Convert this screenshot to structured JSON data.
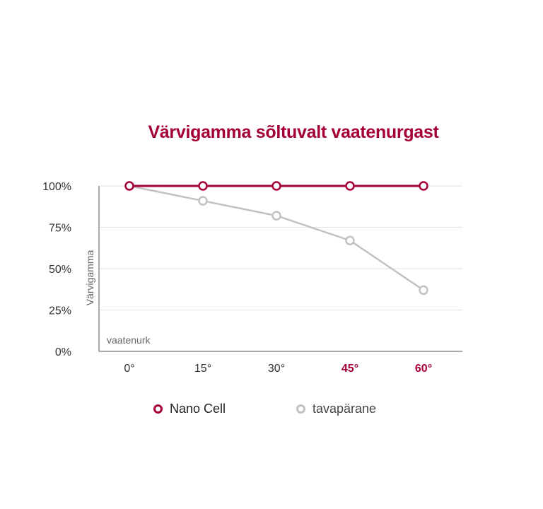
{
  "chart_data": {
    "type": "line",
    "title": "Värvigamma sõltuvalt vaatenurgast",
    "ylabel": "Värvigamma",
    "xlabel": "vaatenurk",
    "categories": [
      "0°",
      "15°",
      "30°",
      "45°",
      "60°"
    ],
    "highlighted_categories": [
      "45°",
      "60°"
    ],
    "y_ticks": [
      "0%",
      "25%",
      "50%",
      "75%",
      "100%"
    ],
    "ylim": [
      0,
      100
    ],
    "grid": true,
    "legend_position": "bottom",
    "series": [
      {
        "name": "Nano Cell",
        "values": [
          100,
          100,
          100,
          100,
          100
        ],
        "color": "#a50034"
      },
      {
        "name": "tavapärane",
        "values": [
          100,
          91,
          82,
          67,
          37
        ],
        "color": "#c2c2c2"
      }
    ]
  },
  "colors": {
    "accent": "#a50034",
    "secondary": "#c2c2c2",
    "grid": "#e3e3e3",
    "axis": "#555555"
  }
}
